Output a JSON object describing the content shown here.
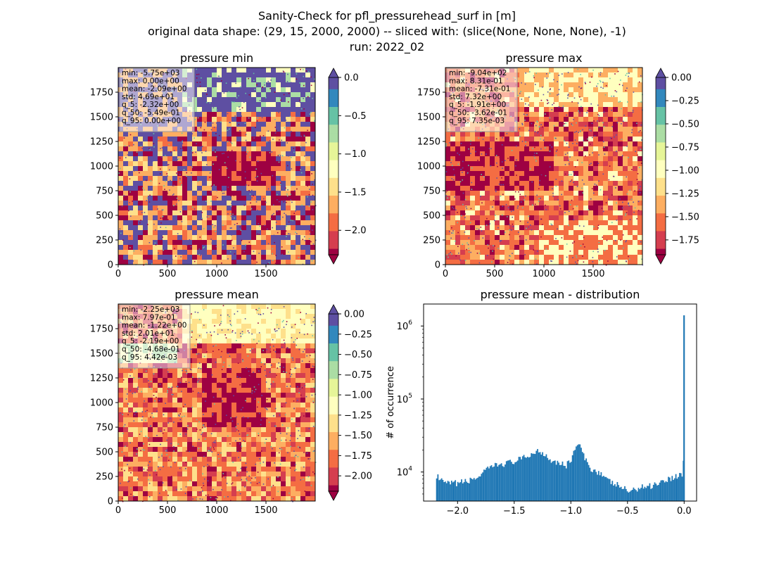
{
  "figure": {
    "suptitle_lines": [
      "Sanity-Check for pfl_pressurehead_surf in [m]",
      "original data shape: (29, 15, 2000, 2000) -- sliced with: (slice(None, None, None), -1)",
      "run: 2022_02"
    ]
  },
  "colors": {
    "spectral": [
      "#9e0142",
      "#d53e4f",
      "#f46d43",
      "#fdae61",
      "#fee08b",
      "#ffffbf",
      "#e6f598",
      "#abdda4",
      "#66c2a5",
      "#3288bd",
      "#5e4fa2"
    ],
    "hist_bar": "#1f77b4"
  },
  "chart_data": [
    {
      "type": "heatmap",
      "title": "pressure min",
      "x_ticks": [
        "0",
        "500",
        "1000",
        "1500"
      ],
      "y_ticks": [
        "0",
        "250",
        "500",
        "750",
        "1000",
        "1250",
        "1500",
        "1750"
      ],
      "xlim": [
        0,
        2000
      ],
      "ylim": [
        0,
        2000
      ],
      "colorbar": {
        "vmin": -2.32,
        "vmax": 0.0,
        "extend": "both",
        "ticks": [
          "0.0",
          "−0.5",
          "−1.0",
          "−1.5",
          "−2.0"
        ],
        "tick_values": [
          0.0,
          -0.5,
          -1.0,
          -1.5,
          -2.0
        ]
      },
      "stats": [
        "min: -5.75e+03",
        "max: 0.00e+00",
        "mean: -2.09e+00",
        "std: 4.69e+01",
        "q_5: -2.32e+00",
        "q_50: -5.49e-01",
        "q_95: 0.00e+00"
      ]
    },
    {
      "type": "heatmap",
      "title": "pressure max",
      "x_ticks": [
        "0",
        "500",
        "1000",
        "1500"
      ],
      "y_ticks": [
        "0",
        "250",
        "500",
        "750",
        "1000",
        "1250",
        "1500",
        "1750"
      ],
      "xlim": [
        0,
        2000
      ],
      "ylim": [
        0,
        2000
      ],
      "colorbar": {
        "vmin": -1.91,
        "vmax": 0.0,
        "extend": "both",
        "ticks": [
          "0.00",
          "−0.25",
          "−0.50",
          "−0.75",
          "−1.00",
          "−1.25",
          "−1.50",
          "−1.75"
        ],
        "tick_values": [
          0.0,
          -0.25,
          -0.5,
          -0.75,
          -1.0,
          -1.25,
          -1.5,
          -1.75
        ]
      },
      "stats": [
        "min: -9.04e+02",
        "max: 8.31e-01",
        "mean: -7.31e-01",
        "std: 7.32e+00",
        "q_5: -1.91e+00",
        "q_50: -3.62e-01",
        "q_95: 7.35e-03"
      ]
    },
    {
      "type": "heatmap",
      "title": "pressure mean",
      "x_ticks": [
        "0",
        "500",
        "1000",
        "1500"
      ],
      "y_ticks": [
        "0",
        "250",
        "500",
        "750",
        "1000",
        "1250",
        "1500",
        "1750"
      ],
      "xlim": [
        0,
        2000
      ],
      "ylim": [
        0,
        2000
      ],
      "colorbar": {
        "vmin": -2.19,
        "vmax": 0.0,
        "extend": "both",
        "ticks": [
          "0.00",
          "−0.25",
          "−0.50",
          "−0.75",
          "−1.00",
          "−1.25",
          "−1.50",
          "−1.75",
          "−2.00"
        ],
        "tick_values": [
          0.0,
          -0.25,
          -0.5,
          -0.75,
          -1.0,
          -1.25,
          -1.5,
          -1.75,
          -2.0
        ]
      },
      "stats": [
        "min: -2.25e+03",
        "max: 7.97e-01",
        "mean: -1.22e+00",
        "std: 2.01e+01",
        "q_5: -2.19e+00",
        "q_50: -4.68e-01",
        "q_95: 4.42e-03"
      ]
    },
    {
      "type": "bar",
      "title": "pressure mean - distribution",
      "ylabel": "# of occurrence",
      "xlim": [
        -2.3,
        0.11
      ],
      "ylim": [
        4000,
        2000000
      ],
      "yscale": "log",
      "x_ticks": [
        "−2.0",
        "−1.5",
        "−1.0",
        "−0.5",
        "0.0"
      ],
      "x_tick_values": [
        -2.0,
        -1.5,
        -1.0,
        -0.5,
        0.0
      ],
      "y_ticks": [
        {
          "base": "10",
          "exp": "4",
          "value": 10000
        },
        {
          "base": "10",
          "exp": "5",
          "value": 100000
        },
        {
          "base": "10",
          "exp": "6",
          "value": 1000000
        }
      ],
      "bin_start": -2.19,
      "bin_width": 0.011,
      "profile_x": [
        -2.19,
        -2.18,
        -2.15,
        -2.1,
        -2.0,
        -1.9,
        -1.8,
        -1.7,
        -1.6,
        -1.5,
        -1.4,
        -1.3,
        -1.25,
        -1.2,
        -1.15,
        -1.1,
        -1.05,
        -1.0,
        -0.97,
        -0.94,
        -0.91,
        -0.88,
        -0.85,
        -0.8,
        -0.75,
        -0.7,
        -0.65,
        -0.6,
        -0.55,
        -0.5,
        -0.45,
        -0.4,
        -0.3,
        -0.2,
        -0.1,
        -0.05,
        -0.02,
        -0.01
      ],
      "profile_y": [
        9000,
        8500,
        7500,
        6900,
        7100,
        7600,
        9000,
        12000,
        13000,
        14000,
        16000,
        19500,
        18500,
        15500,
        14000,
        13500,
        12000,
        15000,
        21000,
        24000,
        20000,
        15000,
        12000,
        10500,
        10000,
        8000,
        7200,
        6700,
        6100,
        5500,
        5600,
        6200,
        6500,
        7500,
        8500,
        9000,
        9500,
        15000
      ],
      "spike": {
        "x": 0.0,
        "value": 1400000
      }
    }
  ]
}
